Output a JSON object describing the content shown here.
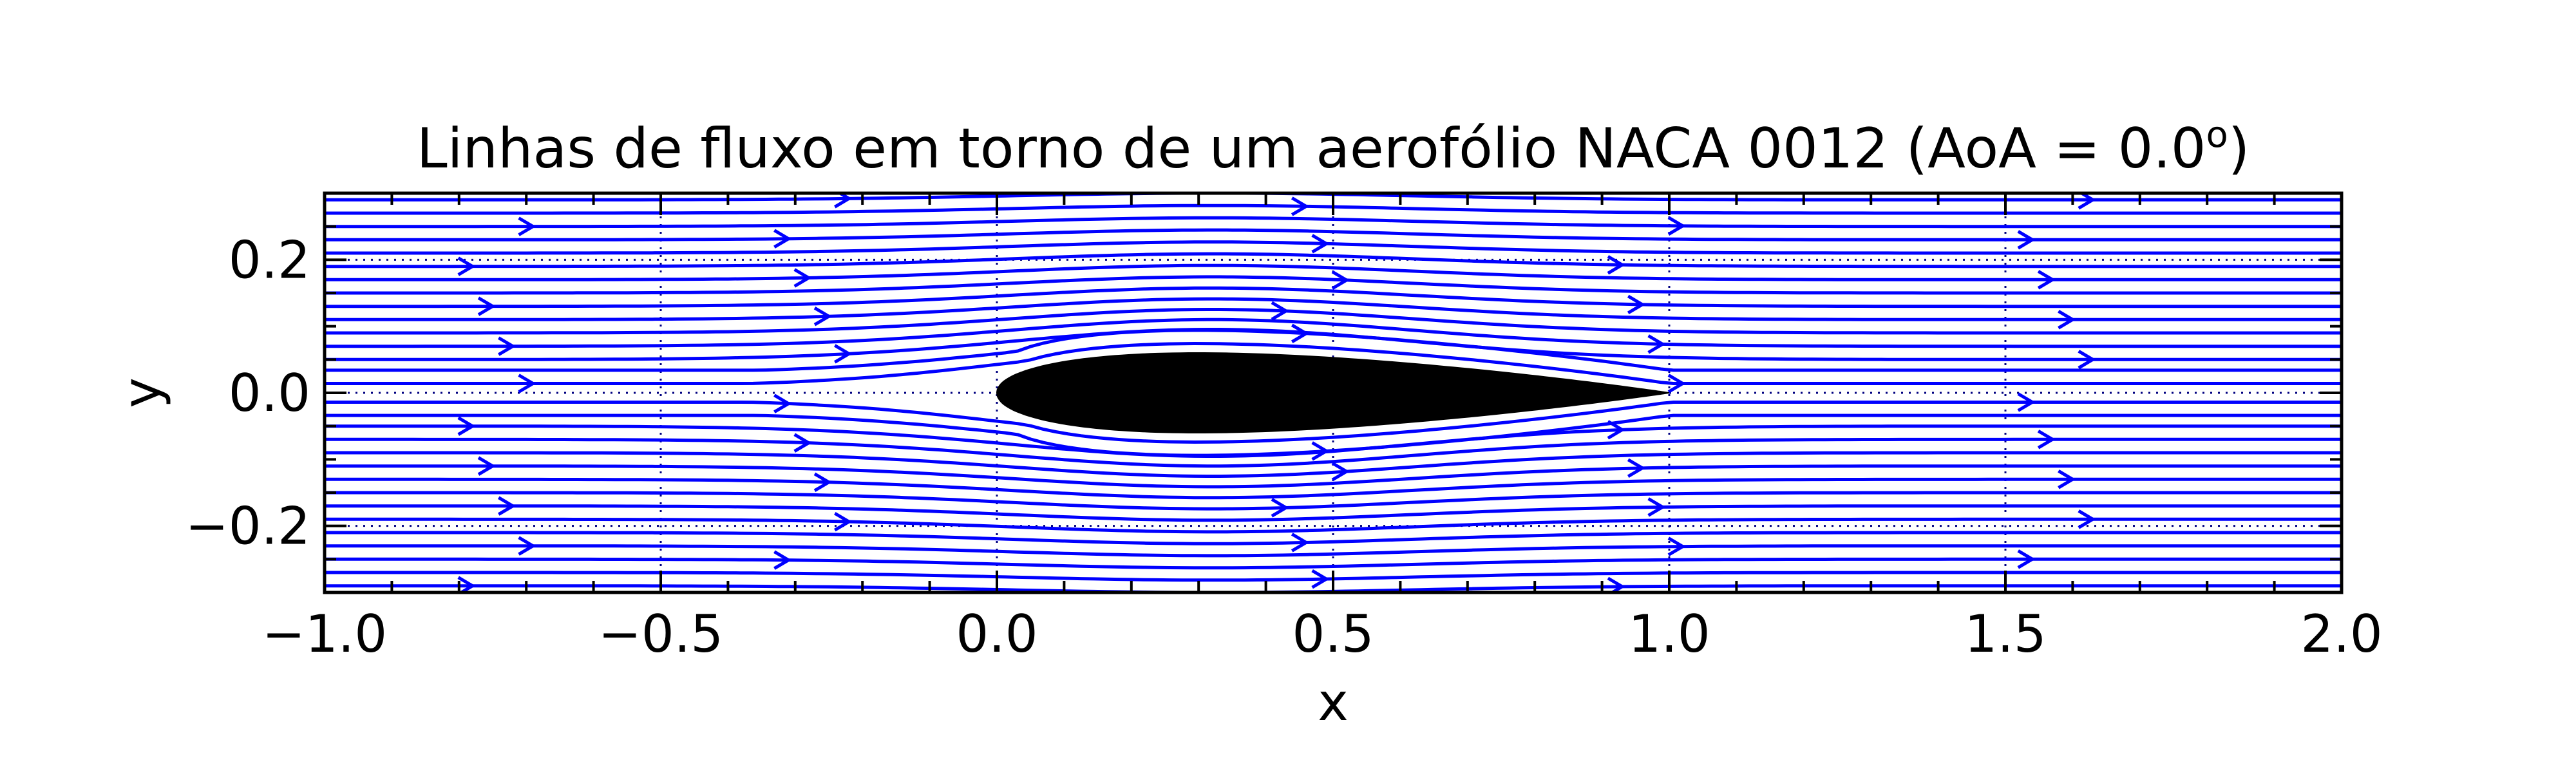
{
  "chart_data": {
    "type": "streamplot",
    "title": "Linhas de fluxo em torno de um aerofólio NACA 0012 (AoA = 0.0",
    "title_superscript": "o",
    "title_end": ")",
    "xlabel": "x",
    "ylabel": "y",
    "xlim": [
      -1.0,
      2.0
    ],
    "ylim": [
      -0.3,
      0.3
    ],
    "x_ticks": [
      -1.0,
      -0.5,
      0.0,
      0.5,
      1.0,
      1.5,
      2.0
    ],
    "x_tick_labels": [
      "−1.0",
      "−0.5",
      "0.0",
      "0.5",
      "1.0",
      "1.5",
      "2.0"
    ],
    "y_ticks": [
      -0.2,
      0.0,
      0.2
    ],
    "y_tick_labels": [
      "−0.2",
      "0.0",
      "0.2"
    ],
    "grid": true,
    "grid_style": "dotted",
    "angle_of_attack_deg": 0.0,
    "airfoil": {
      "name": "NACA 0012",
      "chord": 1.0,
      "thickness_ratio": 0.12,
      "leading_edge_x": 0.0,
      "trailing_edge_x": 1.0,
      "fill_color": "#000000"
    },
    "streamline_color": "#0000ff",
    "streamline_seed_y": [
      -0.29,
      -0.27,
      -0.25,
      -0.23,
      -0.21,
      -0.19,
      -0.17,
      -0.15,
      -0.13,
      -0.11,
      -0.09,
      -0.07,
      -0.05,
      -0.03,
      -0.01,
      0.01,
      0.03,
      0.05,
      0.07,
      0.09,
      0.11,
      0.13,
      0.15,
      0.17,
      0.19,
      0.21,
      0.23,
      0.25,
      0.27,
      0.29
    ],
    "colors": {
      "streamline": "#0000ff",
      "airfoil": "#000000",
      "grid": "#000080",
      "axes": "#000000"
    }
  }
}
